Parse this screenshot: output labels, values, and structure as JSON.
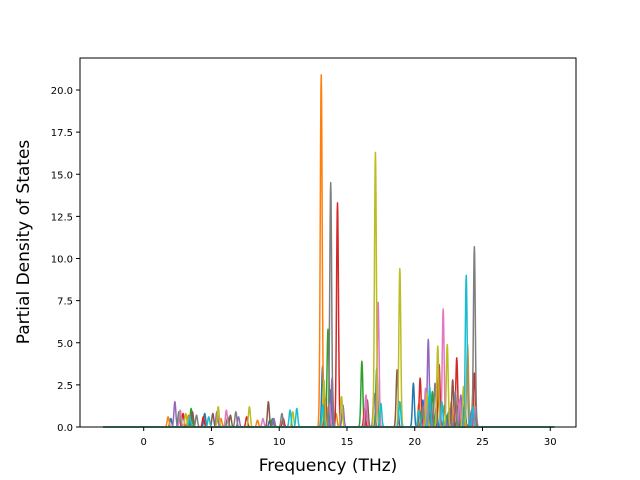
{
  "chart_data": {
    "type": "line",
    "title": "",
    "xlabel": "Frequency (THz)",
    "ylabel": "Partial Density of States",
    "xlim": [
      -4.7,
      31.9
    ],
    "ylim": [
      0,
      21.9
    ],
    "xticks": [
      0,
      5,
      10,
      15,
      20,
      25,
      30
    ],
    "xtick_labels": [
      "0",
      "5",
      "10",
      "15",
      "20",
      "25",
      "30"
    ],
    "yticks": [
      0.0,
      2.5,
      5.0,
      7.5,
      10.0,
      12.5,
      15.0,
      17.5,
      20.0
    ],
    "ytick_labels": [
      "0.0",
      "2.5",
      "5.0",
      "7.5",
      "10.0",
      "12.5",
      "15.0",
      "17.5",
      "20.0"
    ],
    "grid": false,
    "legend": "none",
    "colors": [
      "#1f77b4",
      "#ff7f0e",
      "#2ca02c",
      "#d62728",
      "#9467bd",
      "#8c564b",
      "#e377c2",
      "#7f7f7f",
      "#bcbd22",
      "#17becf"
    ],
    "x_range": [
      -3.0,
      30.3
    ],
    "series": [
      {
        "color": "#1f77b4",
        "peaks": [
          [
            2.0,
            0.5
          ],
          [
            4.5,
            0.8
          ],
          [
            9.3,
            0.4
          ],
          [
            13.2,
            3.6
          ],
          [
            13.8,
            2.2
          ],
          [
            19.9,
            2.6
          ],
          [
            20.6,
            1.6
          ],
          [
            21.6,
            1.2
          ],
          [
            22.5,
            0.9
          ],
          [
            23.5,
            1.4
          ],
          [
            24.1,
            0.8
          ]
        ]
      },
      {
        "color": "#ff7f0e",
        "peaks": [
          [
            1.8,
            0.6
          ],
          [
            3.3,
            0.7
          ],
          [
            5.7,
            0.5
          ],
          [
            8.4,
            0.4
          ],
          [
            13.1,
            20.9
          ],
          [
            13.5,
            1.2
          ],
          [
            14.2,
            0.8
          ],
          [
            20.3,
            1.4
          ],
          [
            22.7,
            1.5
          ],
          [
            23.9,
            4.9
          ],
          [
            24.3,
            2.0
          ]
        ]
      },
      {
        "color": "#2ca02c",
        "peaks": [
          [
            2.6,
            0.9
          ],
          [
            3.5,
            1.1
          ],
          [
            6.2,
            0.6
          ],
          [
            9.5,
            0.5
          ],
          [
            13.6,
            5.8
          ],
          [
            16.1,
            3.9
          ],
          [
            17.2,
            3.5
          ],
          [
            20.5,
            1.0
          ],
          [
            21.3,
            2.1
          ],
          [
            22.4,
            0.7
          ],
          [
            23.2,
            1.3
          ]
        ]
      },
      {
        "color": "#d62728",
        "peaks": [
          [
            2.9,
            0.8
          ],
          [
            4.4,
            0.6
          ],
          [
            7.6,
            0.6
          ],
          [
            10.3,
            0.5
          ],
          [
            14.3,
            13.3
          ],
          [
            16.3,
            1.1
          ],
          [
            20.4,
            2.9
          ],
          [
            21.8,
            3.7
          ],
          [
            23.1,
            4.1
          ],
          [
            24.4,
            3.2
          ]
        ]
      },
      {
        "color": "#9467bd",
        "peaks": [
          [
            2.3,
            1.5
          ],
          [
            5.4,
            0.9
          ],
          [
            7.0,
            0.6
          ],
          [
            9.6,
            0.5
          ],
          [
            13.9,
            2.9
          ],
          [
            14.7,
            1.3
          ],
          [
            21.0,
            5.2
          ],
          [
            22.6,
            1.1
          ],
          [
            23.4,
            1.9
          ],
          [
            24.2,
            1.0
          ]
        ]
      },
      {
        "color": "#8c564b",
        "peaks": [
          [
            3.6,
            0.9
          ],
          [
            5.1,
            0.8
          ],
          [
            6.4,
            0.7
          ],
          [
            9.2,
            1.5
          ],
          [
            13.4,
            1.7
          ],
          [
            16.5,
            1.6
          ],
          [
            18.7,
            3.4
          ],
          [
            21.2,
            1.4
          ],
          [
            22.8,
            2.8
          ],
          [
            23.7,
            0.9
          ]
        ]
      },
      {
        "color": "#e377c2",
        "peaks": [
          [
            2.7,
            1.0
          ],
          [
            6.1,
            1.0
          ],
          [
            8.8,
            0.5
          ],
          [
            13.7,
            1.4
          ],
          [
            16.4,
            1.9
          ],
          [
            17.3,
            7.4
          ],
          [
            20.8,
            2.3
          ],
          [
            22.1,
            7.0
          ],
          [
            23.3,
            1.6
          ],
          [
            24.5,
            1.2
          ]
        ]
      },
      {
        "color": "#7f7f7f",
        "peaks": [
          [
            3.9,
            0.7
          ],
          [
            6.8,
            0.9
          ],
          [
            10.2,
            0.8
          ],
          [
            13.8,
            14.5
          ],
          [
            17.0,
            2.0
          ],
          [
            20.6,
            1.2
          ],
          [
            21.5,
            2.6
          ],
          [
            22.2,
            1.3
          ],
          [
            23.0,
            2.1
          ],
          [
            24.4,
            10.7
          ]
        ]
      },
      {
        "color": "#bcbd22",
        "peaks": [
          [
            3.1,
            0.8
          ],
          [
            5.5,
            1.2
          ],
          [
            7.8,
            1.2
          ],
          [
            11.0,
            0.9
          ],
          [
            13.3,
            2.8
          ],
          [
            14.6,
            1.8
          ],
          [
            17.1,
            16.3
          ],
          [
            18.9,
            9.4
          ],
          [
            20.9,
            2.0
          ],
          [
            21.7,
            4.8
          ],
          [
            22.4,
            4.9
          ],
          [
            23.6,
            2.4
          ]
        ]
      },
      {
        "color": "#17becf",
        "peaks": [
          [
            3.4,
            0.6
          ],
          [
            4.8,
            0.6
          ],
          [
            10.8,
            1.0
          ],
          [
            11.3,
            1.1
          ],
          [
            13.2,
            1.3
          ],
          [
            17.5,
            1.4
          ],
          [
            18.9,
            1.5
          ],
          [
            20.3,
            1.0
          ],
          [
            21.1,
            2.4
          ],
          [
            22.0,
            1.5
          ],
          [
            23.8,
            9.0
          ],
          [
            24.3,
            1.2
          ]
        ]
      }
    ]
  }
}
